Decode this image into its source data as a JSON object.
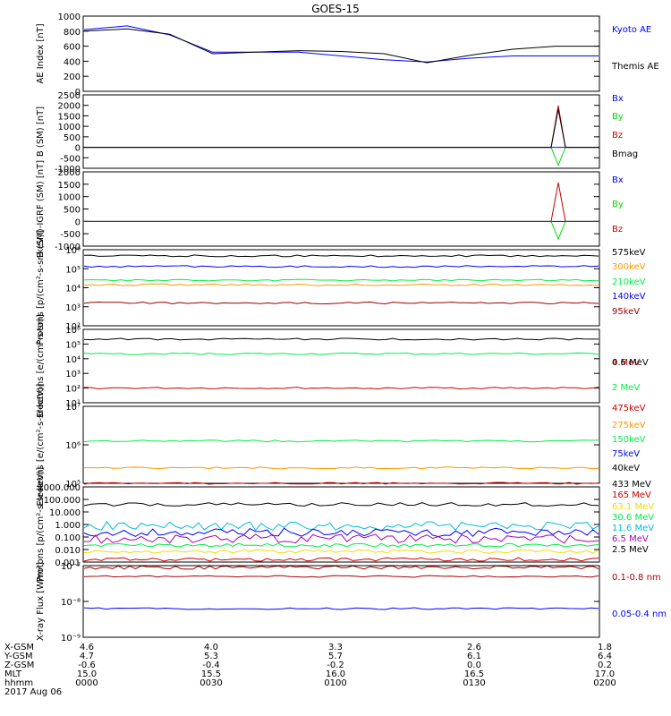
{
  "title": "GOES-15",
  "colors": {
    "black": "#000000",
    "blue": "#0000ff",
    "green": "#00dd00",
    "red": "#cc0000",
    "orange": "#ff9900",
    "lightgreen": "#00ee44",
    "brown": "#990000",
    "cyan": "#00bbdd",
    "purple": "#aa00aa",
    "yellow": "#eedd00",
    "darkred": "#aa0000"
  },
  "chart_data": [
    {
      "type": "line",
      "ylabel": "AE Index [nT]",
      "ylim": [
        0,
        1000
      ],
      "yticks": [
        "0",
        "200",
        "400",
        "600",
        "800",
        "1000"
      ],
      "x": [
        0,
        10,
        20,
        30,
        40,
        50,
        60,
        70,
        80,
        90,
        100,
        110,
        120
      ],
      "series": [
        {
          "name": "Kyoto AE",
          "color": "blue",
          "values": [
            820,
            870,
            750,
            520,
            520,
            520,
            470,
            420,
            390,
            440,
            470,
            470,
            470
          ]
        },
        {
          "name": "Themis AE",
          "color": "black",
          "values": [
            800,
            830,
            760,
            500,
            520,
            540,
            530,
            500,
            380,
            480,
            560,
            600,
            600
          ]
        }
      ]
    },
    {
      "type": "line",
      "ylabel": "B (SM) [nT]",
      "ylim": [
        -1000,
        2500
      ],
      "yticks": [
        "-1000",
        "-500",
        "0",
        "500",
        "1000",
        "1500",
        "2000",
        "2500"
      ],
      "series": [
        {
          "name": "Bx",
          "color": "blue"
        },
        {
          "name": "By",
          "color": "green"
        },
        {
          "name": "Bz",
          "color": "red"
        },
        {
          "name": "Bmag",
          "color": "black"
        }
      ]
    },
    {
      "type": "line",
      "ylabel": "B (SM)-IGRF (SM) [nT]",
      "ylim": [
        -1000,
        2000
      ],
      "yticks": [
        "-1000",
        "-500",
        "0",
        "500",
        "1000",
        "1500",
        "2000"
      ],
      "series": [
        {
          "name": "Bx",
          "color": "blue"
        },
        {
          "name": "By",
          "color": "green"
        },
        {
          "name": "Bz",
          "color": "red"
        }
      ]
    },
    {
      "type": "line",
      "ylabel": "Protons [p/(cm²-s-sr-keV)]",
      "ylim_log": [
        1,
        6
      ],
      "yticks": [
        "10²",
        "10³",
        "10⁴",
        "10⁵",
        "10⁶"
      ],
      "series": [
        {
          "name": "575keV",
          "color": "black",
          "level": 5.6
        },
        {
          "name": "300keV",
          "color": "orange",
          "level": 3.7
        },
        {
          "name": "210keV",
          "color": "lightgreen",
          "level": 4.0
        },
        {
          "name": "140keV",
          "color": "blue",
          "level": 4.9
        },
        {
          "name": "95keV",
          "color": "brown",
          "level": 2.5
        }
      ]
    },
    {
      "type": "line",
      "ylabel": "Electrons [e/(cm²-s-sr)]",
      "ylim_log": [
        0,
        6
      ],
      "yticks": [
        "10¹",
        "10²",
        "10³",
        "10⁴",
        "10⁵",
        "10⁶"
      ],
      "series": [
        {
          "name": "4 MeV",
          "color": "red",
          "level": 1.2
        },
        {
          "name": "2 MeV",
          "color": "lightgreen",
          "level": 4.0
        },
        {
          "name": "0.6 MeV",
          "color": "black",
          "level": 5.2
        }
      ]
    },
    {
      "type": "line",
      "ylabel": "Electrons [e/(cm²-s-sr-keV)]",
      "ylim_log": [
        5,
        7
      ],
      "yticks": [
        "10⁵",
        "10⁶",
        "10⁷"
      ],
      "series": [
        {
          "name": "475keV",
          "color": "red",
          "level": 5.0
        },
        {
          "name": "275keV",
          "color": "orange",
          "level": 5.4
        },
        {
          "name": "150keV",
          "color": "lightgreen",
          "level": 6.1
        },
        {
          "name": "75keV",
          "color": "blue",
          "level": null
        },
        {
          "name": "40keV",
          "color": "black",
          "level": null
        }
      ]
    },
    {
      "type": "line",
      "ylabel": "Protons [p/(cm²-s-sr-keV)]",
      "ylim_log": [
        -3,
        3
      ],
      "yticks": [
        "0.001",
        "0.010",
        "0.100",
        "1.000",
        "10.000",
        "100.000",
        "1000.000"
      ],
      "series": [
        {
          "name": "433 MeV",
          "color": "black",
          "level": 1.6
        },
        {
          "name": "165 MeV",
          "color": "red"
        },
        {
          "name": "63.1 MeV",
          "color": "yellow"
        },
        {
          "name": "30.6 MeV",
          "color": "lightgreen"
        },
        {
          "name": "11.6 MeV",
          "color": "cyan"
        },
        {
          "name": "6.5 MeV",
          "color": "purple"
        },
        {
          "name": "2.5 MeV",
          "color": "black"
        }
      ]
    },
    {
      "type": "line",
      "ylabel": "X-ray Flux [W/m²]",
      "ylim_log": [
        -9,
        -7
      ],
      "yticks": [
        "10⁻⁹",
        "10⁻⁸",
        "10⁻⁷"
      ],
      "series": [
        {
          "name": "0.1-0.8 nm",
          "color": "darkred",
          "level": -7.3
        },
        {
          "name": "0.05-0.4 nm",
          "color": "blue",
          "level": -8.2
        }
      ]
    }
  ],
  "xaxis": {
    "row_labels": [
      "X-GSM",
      "Y-GSM",
      "Z-GSM",
      "MLT",
      "hhmm",
      "2017 Aug 06"
    ],
    "columns": [
      [
        "4.6",
        "4.7",
        "-0.6",
        "15.0",
        "0000"
      ],
      [
        "4.0",
        "5.3",
        "-0.4",
        "15.5",
        "0030"
      ],
      [
        "3.3",
        "5.7",
        "-0.2",
        "16.0",
        "0100"
      ],
      [
        "2.6",
        "6.1",
        "0.0",
        "16.5",
        "0130"
      ],
      [
        "1.8",
        "6.4",
        "0.2",
        "17.0",
        "0200"
      ]
    ]
  }
}
